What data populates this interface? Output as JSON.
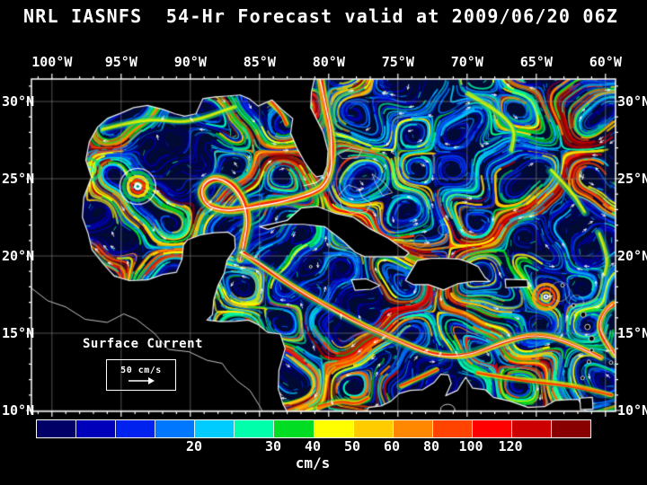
{
  "title": "NRL IASNFS  54-Hr Forecast valid at 2009/06/20 06Z",
  "map": {
    "lon_ticks": [
      "100°W",
      "95°W",
      "90°W",
      "85°W",
      "80°W",
      "75°W",
      "70°W",
      "65°W",
      "60°W"
    ],
    "lat_ticks": [
      "30°N",
      "25°N",
      "20°N",
      "15°N",
      "10°N"
    ],
    "legend": {
      "label": "Surface Current",
      "scale_label": "50 cm/s"
    }
  },
  "colorbar": {
    "unit": "cm/s",
    "colors": [
      "#000066",
      "#0000bb",
      "#0022ee",
      "#0077ff",
      "#00ccff",
      "#00ffaa",
      "#00dd22",
      "#ffff00",
      "#ffcc00",
      "#ff8800",
      "#ff4400",
      "#ff0000",
      "#cc0000",
      "#880000"
    ],
    "labels": [
      {
        "text": "20",
        "boundary": 4
      },
      {
        "text": "30",
        "boundary": 6
      },
      {
        "text": "40",
        "boundary": 7
      },
      {
        "text": "50",
        "boundary": 8
      },
      {
        "text": "60",
        "boundary": 9
      },
      {
        "text": "80",
        "boundary": 10
      },
      {
        "text": "100",
        "boundary": 11
      },
      {
        "text": "120",
        "boundary": 12
      }
    ]
  },
  "colors": {
    "background": "#000000",
    "text": "#ffffff",
    "ocean": "#000a33",
    "grid": "#a0a0a0",
    "coastline": "#ffffff"
  }
}
